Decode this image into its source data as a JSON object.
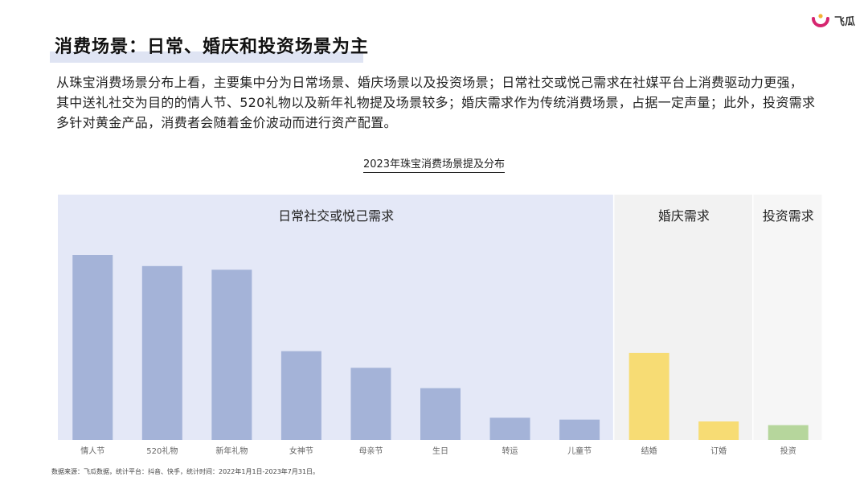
{
  "brand": {
    "name": "飞瓜"
  },
  "heading": {
    "title": "消费场景：日常、婚庆和投资场景为主"
  },
  "description": "从珠宝消费场景分布上看，主要集中分为日常场景、婚庆场景以及投资场景；日常社交或悦己需求在社媒平台上消费驱动力更强，其中送礼社交为目的的情人节、520礼物以及新年礼物提及场景较多；婚庆需求作为传统消费场景，占据一定声量；此外，投资需求多针对黄金产品，消费者会随着金价波动而进行资产配置。",
  "footnote": "数据来源：飞瓜数据，统计平台：抖音、快手，统计时间：2022年1月1日-2023年7月31日。",
  "chart_data": {
    "type": "bar",
    "title": "2023年珠宝消费场景提及分布",
    "categories": [
      "情人节",
      "520礼物",
      "新年礼物",
      "女神节",
      "母亲节",
      "生日",
      "转运",
      "儿童节",
      "结婚",
      "订婚",
      "投资"
    ],
    "values": [
      100,
      94,
      92,
      48,
      39,
      28,
      12,
      11,
      47,
      10,
      8
    ],
    "ylim": [
      0,
      100
    ],
    "groups": [
      {
        "name": "日常社交或悦己需求",
        "categories": [
          "情人节",
          "520礼物",
          "新年礼物",
          "女神节",
          "母亲节",
          "生日",
          "转运",
          "儿童节"
        ],
        "bar_color": "#a4b3d8",
        "bg_color": "#e4e8f7"
      },
      {
        "name": "婚庆需求",
        "categories": [
          "结婚",
          "订婚"
        ],
        "bar_color": "#f7dc74",
        "bg_color": "#f2f2f2"
      },
      {
        "name": "投资需求",
        "categories": [
          "投资"
        ],
        "bar_color": "#b6d69c",
        "bg_color": "#f6f6f6"
      }
    ],
    "grid": false,
    "value_axis_shown": false
  }
}
